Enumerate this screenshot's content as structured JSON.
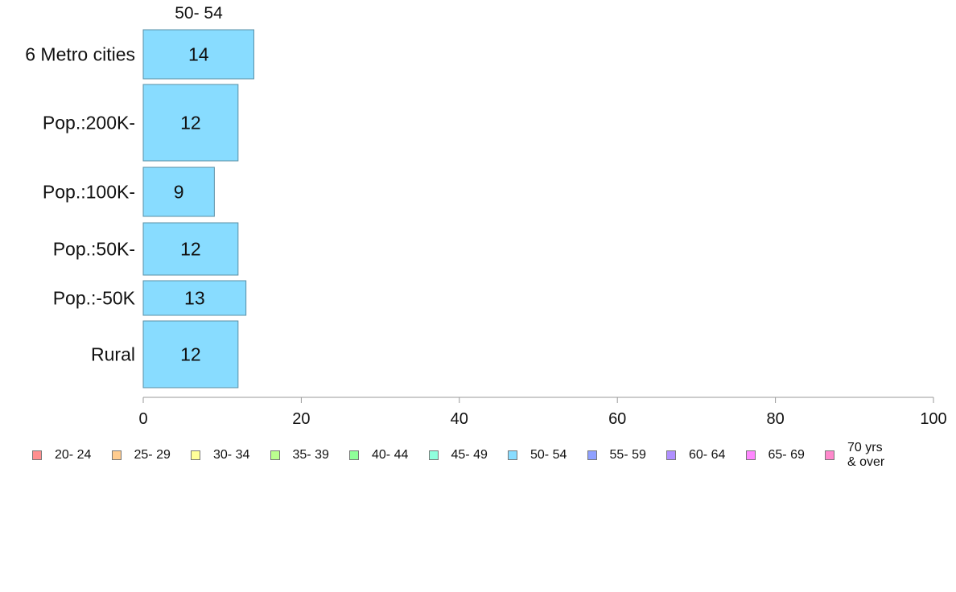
{
  "chart_data": {
    "type": "bar",
    "orientation": "horizontal",
    "series_header": "50- 54",
    "categories": [
      "6 Metro cities",
      "Pop.:200K-",
      "Pop.:100K-",
      "Pop.:50K-",
      "Pop.:-50K",
      "Rural"
    ],
    "values": [
      14,
      12,
      9,
      12,
      13,
      12
    ],
    "data_labels": [
      "14",
      "12",
      "9",
      "12",
      "13",
      "12"
    ],
    "xlim": [
      0,
      100
    ],
    "x_ticks": [
      0,
      20,
      40,
      60,
      80,
      100
    ],
    "x_tick_labels": [
      "0",
      "20",
      "40",
      "60",
      "80",
      "100"
    ],
    "grid": false,
    "legend_position": "bottom",
    "bar_color": "#88dcff",
    "legend": [
      {
        "label": "20- 24",
        "color": "#ff8f8f"
      },
      {
        "label": "25- 29",
        "color": "#ffcc8f"
      },
      {
        "label": "30- 34",
        "color": "#ffff99"
      },
      {
        "label": "35- 39",
        "color": "#bbff8f"
      },
      {
        "label": "40- 44",
        "color": "#8fff99"
      },
      {
        "label": "45- 49",
        "color": "#8fffdd"
      },
      {
        "label": "50- 54",
        "color": "#88dcff"
      },
      {
        "label": "55- 59",
        "color": "#8fa0ff"
      },
      {
        "label": "60- 64",
        "color": "#b08fff"
      },
      {
        "label": "65- 69",
        "color": "#ff88ff"
      },
      {
        "label": "70 yrs\n& over",
        "color": "#ff88cc"
      }
    ]
  }
}
